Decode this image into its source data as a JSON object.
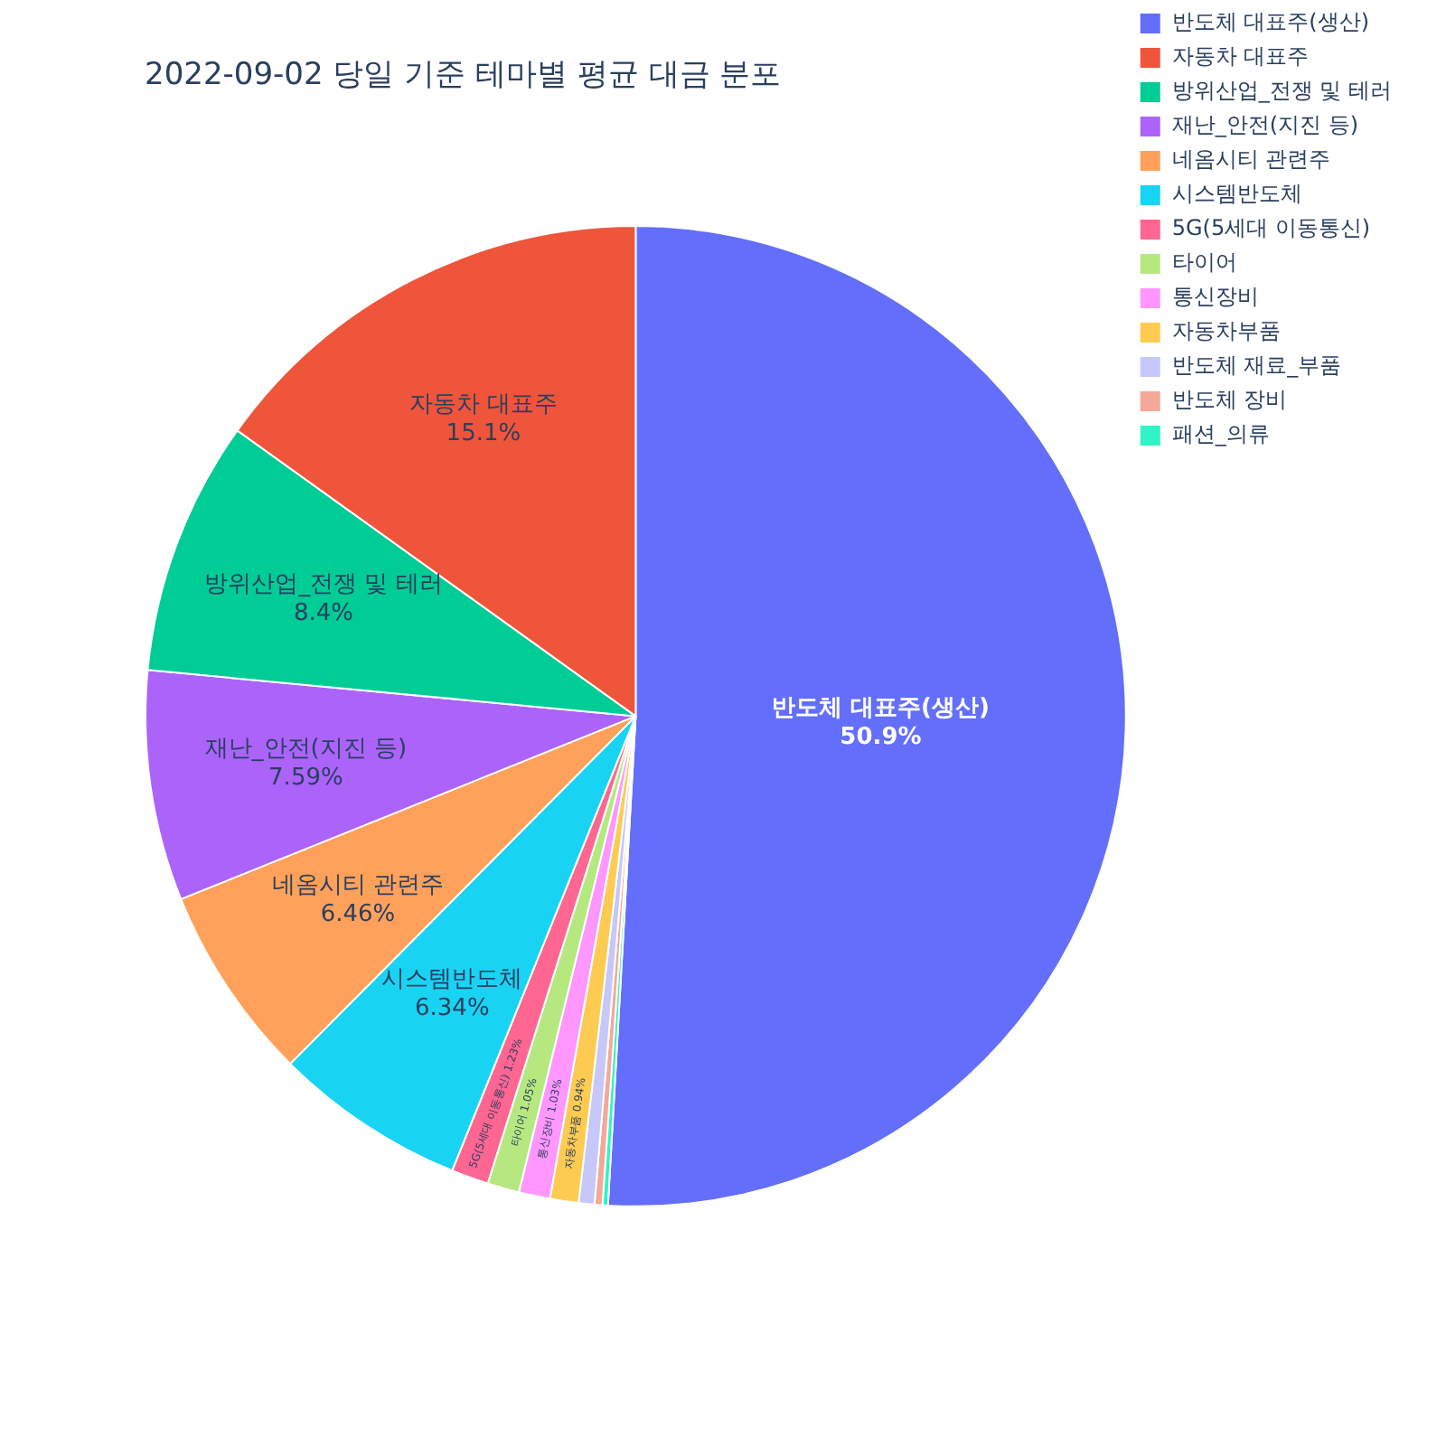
{
  "chart_data": {
    "type": "pie",
    "title": "2022-09-02 당일 기준 테마별 평균 대금 분포",
    "categories": [
      "반도체 대표주(생산)",
      "자동차 대표주",
      "방위산업_전쟁 및 테러",
      "재난_안전(지진 등)",
      "네옴시티 관련주",
      "시스템반도체",
      "5G(5세대 이동통신)",
      "타이어",
      "통신장비",
      "자동차부품",
      "반도체 재료_부품",
      "반도체 장비",
      "패션_의류"
    ],
    "values": [
      50.9,
      15.1,
      8.4,
      7.59,
      6.46,
      6.34,
      1.23,
      1.05,
      1.03,
      0.94,
      0.52,
      0.26,
      0.18
    ],
    "value_labels": [
      "50.9%",
      "15.1%",
      "8.4%",
      "7.59%",
      "6.46%",
      "6.34%",
      "1.23%",
      "1.05%",
      "1.03%",
      "0.94%",
      null,
      null,
      null
    ],
    "colors": [
      "#636efa",
      "#ef553b",
      "#00cc96",
      "#ab63fa",
      "#ffa15a",
      "#19d3f3",
      "#ff6692",
      "#b6e880",
      "#ff97ff",
      "#fecb52",
      "#c6c8f9",
      "#f4a898",
      "#2ef5c5"
    ],
    "legend": "top right"
  }
}
